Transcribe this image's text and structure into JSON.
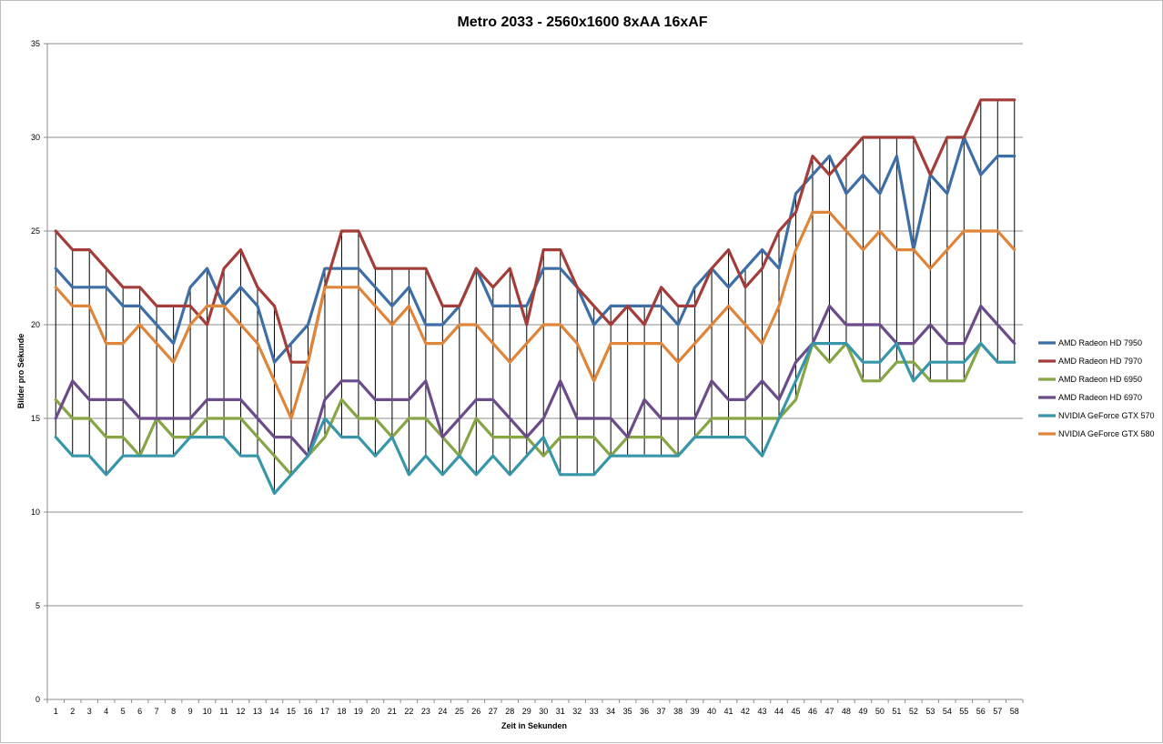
{
  "chart_data": {
    "type": "line",
    "title": "Metro 2033 - 2560x1600 8xAA 16xAF",
    "xlabel": "Zeit in Sekunden",
    "ylabel": "Bilder pro Sekunde",
    "ylim": [
      0,
      35
    ],
    "yticks": [
      0,
      5,
      10,
      15,
      20,
      25,
      30,
      35
    ],
    "grid": true,
    "hi_lo_lines": true,
    "legend_position": "right",
    "categories": [
      "1",
      "2",
      "3",
      "4",
      "5",
      "6",
      "7",
      "8",
      "9",
      "10",
      "11",
      "12",
      "13",
      "14",
      "15",
      "16",
      "17",
      "18",
      "19",
      "20",
      "21",
      "22",
      "23",
      "24",
      "25",
      "26",
      "27",
      "28",
      "29",
      "30",
      "31",
      "32",
      "33",
      "34",
      "35",
      "36",
      "37",
      "38",
      "39",
      "40",
      "41",
      "42",
      "43",
      "44",
      "45",
      "46",
      "47",
      "48",
      "49",
      "50",
      "51",
      "52",
      "53",
      "54",
      "55",
      "56",
      "57",
      "58"
    ],
    "series": [
      {
        "name": "AMD Radeon HD 7950",
        "color": "#3d6ea6",
        "values": [
          23,
          22,
          22,
          22,
          21,
          21,
          20,
          19,
          22,
          23,
          21,
          22,
          21,
          18,
          19,
          20,
          23,
          23,
          23,
          22,
          21,
          22,
          20,
          20,
          21,
          23,
          21,
          21,
          21,
          23,
          23,
          22,
          20,
          21,
          21,
          21,
          21,
          20,
          22,
          23,
          22,
          23,
          24,
          23,
          27,
          28,
          29,
          27,
          28,
          27,
          29,
          24,
          28,
          27,
          30,
          28,
          29,
          29
        ]
      },
      {
        "name": "AMD Radeon HD 7970",
        "color": "#a33d39",
        "values": [
          25,
          24,
          24,
          23,
          22,
          22,
          21,
          21,
          21,
          20,
          23,
          24,
          22,
          21,
          18,
          18,
          22,
          25,
          25,
          23,
          23,
          23,
          23,
          21,
          21,
          23,
          22,
          23,
          20,
          24,
          24,
          22,
          21,
          20,
          21,
          20,
          22,
          21,
          21,
          23,
          24,
          22,
          23,
          25,
          26,
          29,
          28,
          29,
          30,
          30,
          30,
          30,
          28,
          30,
          30,
          32,
          32,
          32
        ]
      },
      {
        "name": "AMD Radeon HD 6950",
        "color": "#86a544",
        "values": [
          16,
          15,
          15,
          14,
          14,
          13,
          15,
          14,
          14,
          15,
          15,
          15,
          14,
          13,
          12,
          13,
          14,
          16,
          15,
          15,
          14,
          15,
          15,
          14,
          13,
          15,
          14,
          14,
          14,
          13,
          14,
          14,
          14,
          13,
          14,
          14,
          14,
          13,
          14,
          15,
          15,
          15,
          15,
          15,
          16,
          19,
          18,
          19,
          17,
          17,
          18,
          18,
          17,
          17,
          17,
          19,
          18,
          18
        ]
      },
      {
        "name": "AMD Radeon HD 6970",
        "color": "#6b4b8a",
        "values": [
          15,
          17,
          16,
          16,
          16,
          15,
          15,
          15,
          15,
          16,
          16,
          16,
          15,
          14,
          14,
          13,
          16,
          17,
          17,
          16,
          16,
          16,
          17,
          14,
          15,
          16,
          16,
          15,
          14,
          15,
          17,
          15,
          15,
          15,
          14,
          16,
          15,
          15,
          15,
          17,
          16,
          16,
          17,
          16,
          18,
          19,
          21,
          20,
          20,
          20,
          19,
          19,
          20,
          19,
          19,
          21,
          20,
          19
        ]
      },
      {
        "name": "NVIDIA GeForce GTX 570",
        "color": "#3796a9",
        "values": [
          14,
          13,
          13,
          12,
          13,
          13,
          13,
          13,
          14,
          14,
          14,
          13,
          13,
          11,
          12,
          13,
          15,
          14,
          14,
          13,
          14,
          12,
          13,
          12,
          13,
          12,
          13,
          12,
          13,
          14,
          12,
          12,
          12,
          13,
          13,
          13,
          13,
          13,
          14,
          14,
          14,
          14,
          13,
          15,
          17,
          19,
          19,
          19,
          18,
          18,
          19,
          17,
          18,
          18,
          18,
          19,
          18,
          18
        ]
      },
      {
        "name": "NVIDIA GeForce GTX 580",
        "color": "#df8539",
        "values": [
          22,
          21,
          21,
          19,
          19,
          20,
          19,
          18,
          20,
          21,
          21,
          20,
          19,
          17,
          15,
          18,
          22,
          22,
          22,
          21,
          20,
          21,
          19,
          19,
          20,
          20,
          19,
          18,
          19,
          20,
          20,
          19,
          17,
          19,
          19,
          19,
          19,
          18,
          19,
          20,
          21,
          20,
          19,
          21,
          24,
          26,
          26,
          25,
          24,
          25,
          24,
          24,
          23,
          24,
          25,
          25,
          25,
          24
        ]
      }
    ]
  }
}
